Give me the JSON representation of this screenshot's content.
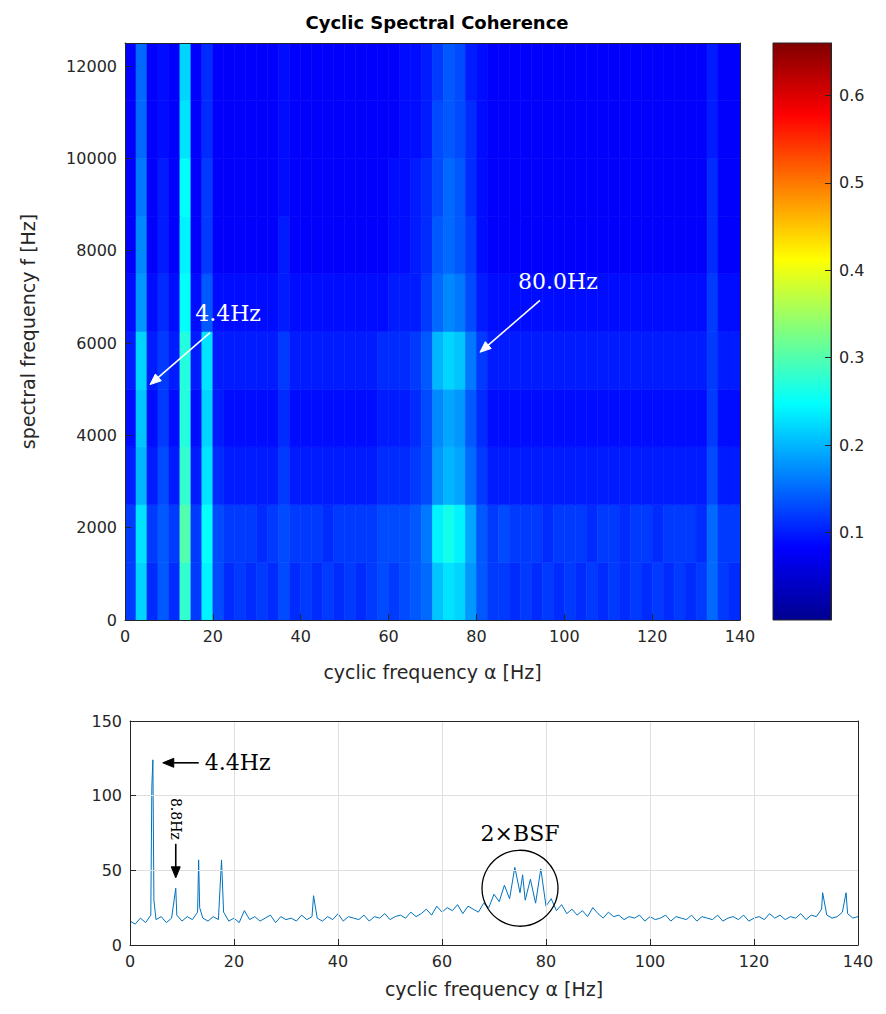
{
  "chart_data": [
    {
      "type": "heatmap",
      "title": "Cyclic Spectral Coherence",
      "xlabel": "cyclic frequency α [Hz]",
      "ylabel": "spectral frequency f [Hz]",
      "xlim": [
        0,
        140
      ],
      "xticks": [
        0,
        20,
        40,
        60,
        80,
        100,
        120,
        140
      ],
      "ylim": [
        0,
        12500
      ],
      "yticks": [
        0,
        2000,
        4000,
        6000,
        8000,
        10000,
        12000
      ],
      "grid": false,
      "x": [
        1.25,
        3.75,
        6.25,
        8.75,
        11.25,
        13.75,
        16.25,
        18.75,
        21.25,
        23.75,
        26.25,
        28.75,
        31.25,
        33.75,
        36.25,
        38.75,
        41.25,
        43.75,
        46.25,
        48.75,
        51.25,
        53.75,
        56.25,
        58.75,
        61.25,
        63.75,
        66.25,
        68.75,
        71.25,
        73.75,
        76.25,
        78.75,
        81.25,
        83.75,
        86.25,
        88.75,
        91.25,
        93.75,
        96.25,
        98.75,
        101.25,
        103.75,
        106.25,
        108.75,
        111.25,
        113.75,
        116.25,
        118.75,
        121.25,
        123.75,
        126.25,
        128.75,
        131.25,
        133.75,
        136.25,
        138.75
      ],
      "y": [
        625,
        1875,
        3125,
        4375,
        5625,
        6875,
        8125,
        9375,
        10625,
        11875
      ],
      "cells": [
        [
          0.12,
          0.22,
          0.11,
          0.14,
          0.11,
          0.28,
          0.12,
          0.24,
          0.13,
          0.11,
          0.12,
          0.11,
          0.12,
          0.11,
          0.13,
          0.11,
          0.12,
          0.11,
          0.12,
          0.11,
          0.12,
          0.11,
          0.12,
          0.13,
          0.12,
          0.13,
          0.14,
          0.15,
          0.21,
          0.23,
          0.22,
          0.18,
          0.14,
          0.12,
          0.12,
          0.11,
          0.12,
          0.11,
          0.12,
          0.11,
          0.12,
          0.11,
          0.12,
          0.11,
          0.12,
          0.11,
          0.12,
          0.11,
          0.12,
          0.11,
          0.12,
          0.11,
          0.12,
          0.15,
          0.12,
          0.11
        ],
        [
          0.12,
          0.23,
          0.12,
          0.14,
          0.12,
          0.3,
          0.12,
          0.25,
          0.13,
          0.12,
          0.12,
          0.12,
          0.11,
          0.12,
          0.13,
          0.12,
          0.12,
          0.12,
          0.11,
          0.12,
          0.12,
          0.12,
          0.12,
          0.13,
          0.13,
          0.13,
          0.14,
          0.16,
          0.24,
          0.26,
          0.24,
          0.19,
          0.14,
          0.12,
          0.13,
          0.12,
          0.12,
          0.12,
          0.11,
          0.12,
          0.12,
          0.12,
          0.11,
          0.12,
          0.12,
          0.11,
          0.12,
          0.12,
          0.11,
          0.12,
          0.12,
          0.12,
          0.11,
          0.15,
          0.12,
          0.12
        ],
        [
          0.1,
          0.2,
          0.1,
          0.13,
          0.1,
          0.28,
          0.1,
          0.23,
          0.11,
          0.1,
          0.1,
          0.1,
          0.1,
          0.1,
          0.12,
          0.1,
          0.1,
          0.1,
          0.1,
          0.1,
          0.1,
          0.1,
          0.1,
          0.11,
          0.11,
          0.11,
          0.12,
          0.13,
          0.18,
          0.2,
          0.19,
          0.15,
          0.12,
          0.1,
          0.1,
          0.1,
          0.1,
          0.1,
          0.1,
          0.1,
          0.1,
          0.1,
          0.1,
          0.1,
          0.1,
          0.1,
          0.1,
          0.1,
          0.1,
          0.1,
          0.1,
          0.1,
          0.1,
          0.13,
          0.1,
          0.1
        ],
        [
          0.09,
          0.21,
          0.09,
          0.12,
          0.09,
          0.27,
          0.09,
          0.22,
          0.1,
          0.09,
          0.09,
          0.09,
          0.09,
          0.09,
          0.11,
          0.09,
          0.09,
          0.09,
          0.09,
          0.09,
          0.09,
          0.09,
          0.09,
          0.1,
          0.1,
          0.1,
          0.11,
          0.13,
          0.17,
          0.19,
          0.18,
          0.14,
          0.11,
          0.09,
          0.09,
          0.09,
          0.09,
          0.09,
          0.09,
          0.09,
          0.09,
          0.09,
          0.09,
          0.09,
          0.09,
          0.09,
          0.09,
          0.09,
          0.09,
          0.09,
          0.09,
          0.09,
          0.09,
          0.12,
          0.09,
          0.09
        ],
        [
          0.1,
          0.22,
          0.1,
          0.12,
          0.1,
          0.27,
          0.1,
          0.23,
          0.1,
          0.1,
          0.1,
          0.1,
          0.1,
          0.1,
          0.12,
          0.1,
          0.1,
          0.1,
          0.1,
          0.1,
          0.1,
          0.1,
          0.1,
          0.11,
          0.11,
          0.11,
          0.12,
          0.14,
          0.2,
          0.22,
          0.21,
          0.16,
          0.12,
          0.1,
          0.1,
          0.1,
          0.1,
          0.1,
          0.1,
          0.1,
          0.1,
          0.1,
          0.1,
          0.1,
          0.1,
          0.1,
          0.1,
          0.1,
          0.1,
          0.1,
          0.1,
          0.1,
          0.1,
          0.12,
          0.1,
          0.1
        ],
        [
          0.09,
          0.18,
          0.09,
          0.11,
          0.09,
          0.25,
          0.09,
          0.14,
          0.09,
          0.09,
          0.09,
          0.09,
          0.09,
          0.09,
          0.1,
          0.09,
          0.09,
          0.09,
          0.09,
          0.09,
          0.09,
          0.09,
          0.09,
          0.09,
          0.1,
          0.1,
          0.1,
          0.12,
          0.15,
          0.17,
          0.16,
          0.13,
          0.1,
          0.09,
          0.09,
          0.09,
          0.09,
          0.09,
          0.09,
          0.09,
          0.09,
          0.09,
          0.09,
          0.09,
          0.09,
          0.09,
          0.09,
          0.09,
          0.09,
          0.09,
          0.09,
          0.09,
          0.09,
          0.12,
          0.09,
          0.09
        ],
        [
          0.08,
          0.17,
          0.08,
          0.1,
          0.08,
          0.24,
          0.08,
          0.12,
          0.08,
          0.08,
          0.08,
          0.08,
          0.08,
          0.08,
          0.1,
          0.08,
          0.08,
          0.08,
          0.08,
          0.08,
          0.08,
          0.08,
          0.08,
          0.08,
          0.09,
          0.09,
          0.1,
          0.11,
          0.14,
          0.15,
          0.14,
          0.12,
          0.09,
          0.08,
          0.08,
          0.08,
          0.08,
          0.08,
          0.08,
          0.08,
          0.08,
          0.08,
          0.08,
          0.08,
          0.08,
          0.08,
          0.08,
          0.08,
          0.08,
          0.08,
          0.08,
          0.08,
          0.08,
          0.11,
          0.08,
          0.08
        ],
        [
          0.08,
          0.16,
          0.08,
          0.1,
          0.08,
          0.25,
          0.08,
          0.12,
          0.08,
          0.08,
          0.08,
          0.08,
          0.08,
          0.08,
          0.09,
          0.08,
          0.08,
          0.08,
          0.08,
          0.08,
          0.08,
          0.08,
          0.08,
          0.08,
          0.09,
          0.09,
          0.1,
          0.11,
          0.13,
          0.15,
          0.14,
          0.11,
          0.09,
          0.08,
          0.08,
          0.08,
          0.08,
          0.08,
          0.08,
          0.08,
          0.08,
          0.08,
          0.08,
          0.08,
          0.08,
          0.08,
          0.08,
          0.08,
          0.08,
          0.08,
          0.08,
          0.08,
          0.08,
          0.11,
          0.08,
          0.08
        ],
        [
          0.08,
          0.15,
          0.08,
          0.09,
          0.08,
          0.23,
          0.08,
          0.11,
          0.08,
          0.08,
          0.08,
          0.08,
          0.08,
          0.08,
          0.09,
          0.08,
          0.08,
          0.08,
          0.08,
          0.08,
          0.08,
          0.08,
          0.08,
          0.08,
          0.08,
          0.09,
          0.09,
          0.1,
          0.13,
          0.14,
          0.13,
          0.11,
          0.09,
          0.08,
          0.08,
          0.08,
          0.08,
          0.08,
          0.08,
          0.08,
          0.08,
          0.08,
          0.08,
          0.08,
          0.08,
          0.08,
          0.08,
          0.08,
          0.08,
          0.08,
          0.08,
          0.08,
          0.08,
          0.1,
          0.08,
          0.08
        ],
        [
          0.08,
          0.15,
          0.08,
          0.09,
          0.08,
          0.22,
          0.08,
          0.11,
          0.08,
          0.08,
          0.08,
          0.08,
          0.08,
          0.08,
          0.09,
          0.08,
          0.08,
          0.08,
          0.08,
          0.08,
          0.08,
          0.08,
          0.08,
          0.08,
          0.08,
          0.09,
          0.09,
          0.1,
          0.12,
          0.14,
          0.13,
          0.1,
          0.09,
          0.08,
          0.08,
          0.08,
          0.08,
          0.08,
          0.08,
          0.08,
          0.08,
          0.08,
          0.08,
          0.08,
          0.08,
          0.08,
          0.08,
          0.08,
          0.08,
          0.08,
          0.08,
          0.08,
          0.08,
          0.1,
          0.08,
          0.08
        ]
      ],
      "colorbar_range": [
        0,
        0.66
      ],
      "colorbar_ticks": [
        0.1,
        0.2,
        0.3,
        0.4,
        0.5,
        0.6
      ],
      "annotations": [
        {
          "text": "4.4Hz",
          "x": 5.7,
          "y": 5100
        },
        {
          "text": "80.0Hz",
          "x": 80.8,
          "y": 5800
        }
      ]
    },
    {
      "type": "line",
      "xlabel": "cyclic frequency α [Hz]",
      "xlim": [
        0,
        140
      ],
      "xticks": [
        0,
        20,
        40,
        60,
        80,
        100,
        120,
        140
      ],
      "ylim": [
        0,
        150
      ],
      "yticks": [
        0,
        50,
        100,
        150
      ],
      "grid": true,
      "color": "#0072bd",
      "x": [
        0,
        1,
        2,
        3,
        4,
        4.2,
        4.4,
        4.6,
        5,
        6,
        7,
        8,
        8.8,
        9,
        10,
        11,
        12,
        13,
        13.2,
        13.4,
        14,
        15,
        16,
        17,
        17.6,
        18,
        19,
        20,
        21,
        22,
        23,
        24,
        25,
        26,
        27,
        28,
        29,
        30,
        31,
        32,
        33,
        34,
        35,
        35.3,
        36,
        37,
        38,
        39,
        40,
        41,
        42,
        43,
        44,
        45,
        46,
        47,
        48,
        49,
        50,
        51,
        52,
        53,
        54,
        55,
        56,
        57,
        58,
        59,
        60,
        61,
        62,
        63,
        64,
        65,
        66,
        67,
        68,
        69,
        70,
        71,
        72,
        73,
        74,
        75,
        75.5,
        76,
        77,
        78,
        79,
        80,
        81,
        82,
        83,
        84,
        85,
        86,
        87,
        88,
        89,
        90,
        91,
        92,
        93,
        94,
        95,
        96,
        97,
        98,
        99,
        100,
        101,
        102,
        103,
        104,
        105,
        106,
        107,
        108,
        109,
        110,
        111,
        112,
        113,
        114,
        115,
        116,
        117,
        118,
        119,
        120,
        121,
        122,
        123,
        124,
        125,
        126,
        127,
        128,
        129,
        130,
        131,
        132,
        133,
        133.2,
        134,
        135,
        136,
        137,
        137.7,
        138,
        139,
        140
      ],
      "values": [
        16,
        14,
        18,
        15,
        20,
        106,
        124,
        30,
        17,
        19,
        15,
        18,
        38,
        20,
        16,
        19,
        17,
        22,
        57,
        25,
        18,
        16,
        19,
        17,
        57,
        22,
        16,
        18,
        15,
        23,
        17,
        19,
        16,
        18,
        20,
        15,
        19,
        17,
        18,
        16,
        20,
        17,
        19,
        33,
        18,
        16,
        19,
        17,
        21,
        16,
        19,
        18,
        17,
        20,
        16,
        19,
        18,
        21,
        17,
        19,
        20,
        18,
        22,
        19,
        21,
        24,
        20,
        26,
        22,
        25,
        23,
        27,
        21,
        26,
        24,
        22,
        28,
        25,
        34,
        29,
        40,
        31,
        52,
        35,
        47,
        30,
        44,
        28,
        51,
        26,
        31,
        23,
        27,
        21,
        24,
        20,
        23,
        19,
        25,
        21,
        18,
        22,
        19,
        20,
        17,
        19,
        18,
        20,
        16,
        19,
        17,
        18,
        20,
        16,
        19,
        18,
        17,
        20,
        16,
        19,
        18,
        17,
        20,
        16,
        18,
        19,
        17,
        20,
        16,
        18,
        19,
        17,
        21,
        18,
        20,
        17,
        19,
        18,
        21,
        17,
        20,
        19,
        24,
        35,
        20,
        18,
        19,
        22,
        35,
        21,
        18,
        19
      ],
      "annotations": [
        {
          "text": "4.4Hz",
          "x": 6.3,
          "y": 122
        },
        {
          "text": "8.8Hz",
          "x": 8.8,
          "y": 45
        },
        {
          "text": "2×BSF",
          "x": 75,
          "y": 38
        }
      ]
    }
  ]
}
